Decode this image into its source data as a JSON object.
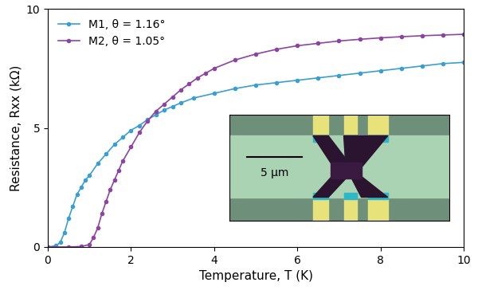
{
  "chart_data": {
    "type": "line",
    "x_label": "Temperature, T (K)",
    "y_label": "Resistance, Rxx (kΩ)",
    "xlim": [
      0,
      10
    ],
    "xticks": [
      0,
      2,
      4,
      6,
      8,
      10
    ],
    "ylim": [
      0,
      10
    ],
    "yticks": [
      0,
      5,
      10
    ],
    "grid": false,
    "legend": "upper left",
    "annotations": [
      "5 µm"
    ],
    "series": [
      {
        "name": "M1, θ = 1.16°",
        "color": "#3a9fd0",
        "marker": "o",
        "line_style": "solid",
        "x": [
          0,
          0.2,
          0.3,
          0.4,
          0.5,
          0.6,
          0.7,
          0.8,
          0.9,
          1.0,
          1.2,
          1.4,
          1.6,
          1.8,
          2.0,
          2.2,
          2.4,
          2.6,
          2.8,
          3.0,
          3.2,
          3.5,
          4.0,
          4.5,
          5.0,
          5.5,
          6.0,
          6.5,
          7.0,
          7.5,
          8.0,
          8.5,
          9.0,
          9.5,
          10
        ],
        "values": [
          0,
          0.05,
          0.2,
          0.6,
          1.2,
          1.7,
          2.2,
          2.5,
          2.8,
          3.0,
          3.5,
          3.9,
          4.3,
          4.6,
          4.9,
          5.1,
          5.35,
          5.55,
          5.75,
          5.9,
          6.05,
          6.25,
          6.45,
          6.65,
          6.8,
          6.9,
          7.0,
          7.1,
          7.2,
          7.3,
          7.4,
          7.5,
          7.6,
          7.7,
          7.75
        ]
      },
      {
        "name": "M2, θ = 1.05°",
        "color": "#8c44a0",
        "marker": "o",
        "line_style": "solid",
        "x": [
          0,
          0.5,
          0.8,
          1.0,
          1.1,
          1.2,
          1.3,
          1.4,
          1.5,
          1.6,
          1.7,
          1.8,
          2.0,
          2.2,
          2.4,
          2.6,
          2.8,
          3.0,
          3.2,
          3.4,
          3.6,
          3.8,
          4.0,
          4.5,
          5.0,
          5.5,
          6.0,
          6.5,
          7.0,
          7.5,
          8.0,
          8.5,
          9.0,
          9.5,
          10
        ],
        "values": [
          0,
          0,
          0.02,
          0.1,
          0.4,
          0.8,
          1.4,
          1.9,
          2.4,
          2.8,
          3.2,
          3.6,
          4.2,
          4.8,
          5.3,
          5.7,
          6.0,
          6.3,
          6.6,
          6.85,
          7.1,
          7.3,
          7.5,
          7.85,
          8.1,
          8.3,
          8.45,
          8.55,
          8.65,
          8.72,
          8.78,
          8.83,
          8.87,
          8.9,
          8.93
        ]
      }
    ]
  }
}
